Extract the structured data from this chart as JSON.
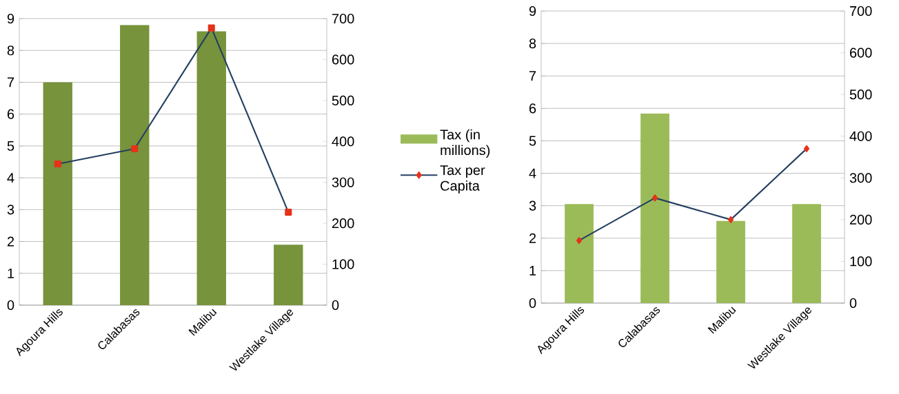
{
  "chart_data": [
    {
      "type": "bar",
      "categories": [
        "Agoura Hills",
        "Calabasas",
        "Malibu",
        "Westlake Village"
      ],
      "series": [
        {
          "color": "#77933c",
          "values": [
            7.0,
            8.8,
            8.6,
            1.9
          ]
        },
        {
          "type": "line",
          "axis": "y2",
          "color": "#243f60",
          "marker": "square",
          "values": [
            345,
            382,
            677,
            227
          ]
        }
      ],
      "ylim": [
        0,
        9
      ],
      "yticks": [
        0,
        1,
        2,
        3,
        4,
        5,
        6,
        7,
        8,
        9
      ],
      "y2lim": [
        0,
        700
      ],
      "y2ticks": [
        0,
        100,
        200,
        300,
        400,
        500,
        600,
        700
      ],
      "grid": "y"
    },
    {
      "type": "bar",
      "categories": [
        "Agoura Hills",
        "Calabasas",
        "Malibu",
        "Westlake Village"
      ],
      "series": [
        {
          "name": "Tax (in millions)",
          "color": "#9bbb59",
          "values": [
            3.05,
            5.84,
            2.53,
            3.05
          ]
        },
        {
          "type": "line",
          "axis": "y2",
          "name": "Tax per Capita",
          "color": "#243f60",
          "marker": "diamond",
          "values": [
            150,
            252,
            200,
            370
          ]
        }
      ],
      "ylim": [
        0,
        9
      ],
      "yticks": [
        0,
        1,
        2,
        3,
        4,
        5,
        6,
        7,
        8,
        9
      ],
      "y2lim": [
        0,
        700
      ],
      "y2ticks": [
        0,
        100,
        200,
        300,
        400,
        500,
        600,
        700
      ],
      "grid": "y",
      "legend": "left"
    }
  ]
}
